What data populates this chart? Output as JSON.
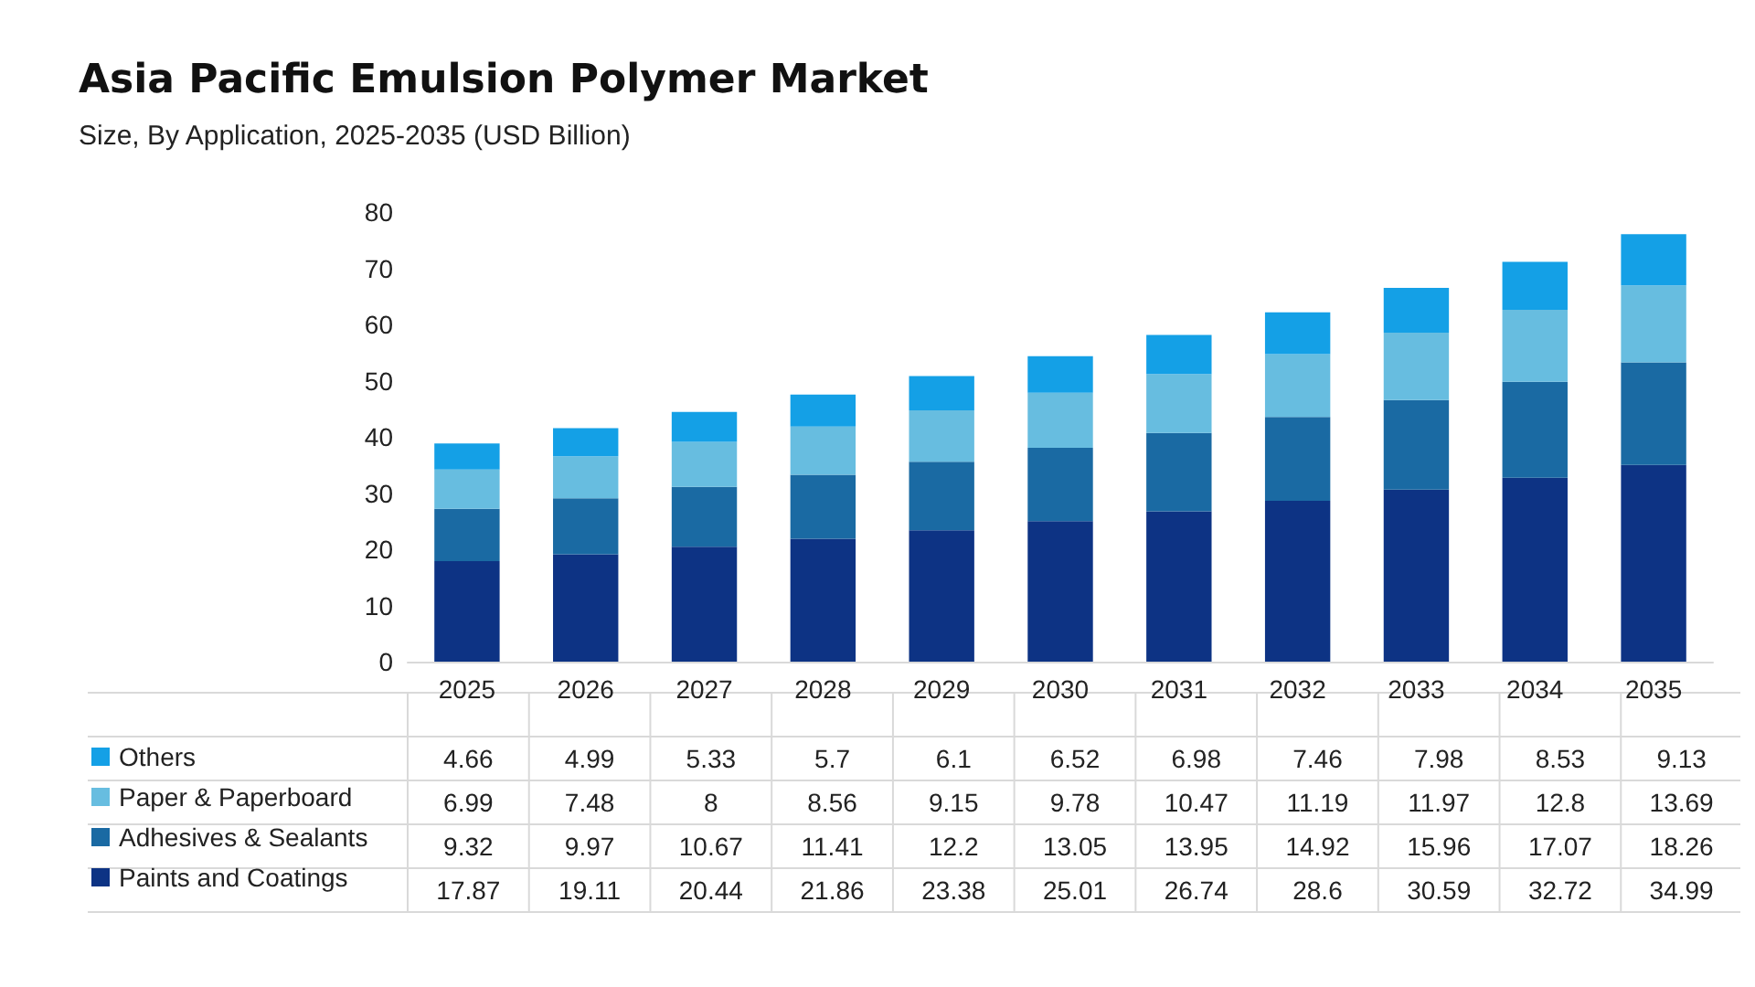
{
  "chart_data": {
    "type": "bar",
    "title": "Asia Pacific Emulsion Polymer Market",
    "subtitle": "Size, By Application, 2025-2035 (USD Billion)",
    "categories": [
      "2025",
      "2026",
      "2027",
      "2028",
      "2029",
      "2030",
      "2031",
      "2032",
      "2033",
      "2034",
      "2035"
    ],
    "series": [
      {
        "name": "Paints and Coatings",
        "color": "#0d3384",
        "values": [
          17.87,
          19.11,
          20.44,
          21.86,
          23.38,
          25.01,
          26.74,
          28.6,
          30.59,
          32.72,
          34.99
        ]
      },
      {
        "name": "Adhesives & Sealants",
        "color": "#1a6aa3",
        "values": [
          9.32,
          9.97,
          10.67,
          11.41,
          12.2,
          13.05,
          13.95,
          14.92,
          15.96,
          17.07,
          18.26
        ]
      },
      {
        "name": "Paper & Paperboard",
        "color": "#67bde0",
        "values": [
          6.99,
          7.48,
          8,
          8.56,
          9.15,
          9.78,
          10.47,
          11.19,
          11.97,
          12.8,
          13.69
        ]
      },
      {
        "name": "Others",
        "color": "#14a0e6",
        "values": [
          4.66,
          4.99,
          5.33,
          5.7,
          6.1,
          6.52,
          6.98,
          7.46,
          7.98,
          8.53,
          9.13
        ]
      }
    ],
    "stacked": true,
    "ylim": [
      0,
      80
    ],
    "yticks": [
      0,
      10,
      20,
      30,
      40,
      50,
      60,
      70,
      80
    ],
    "grid": false,
    "legend": "bottom",
    "data_labels": true
  }
}
